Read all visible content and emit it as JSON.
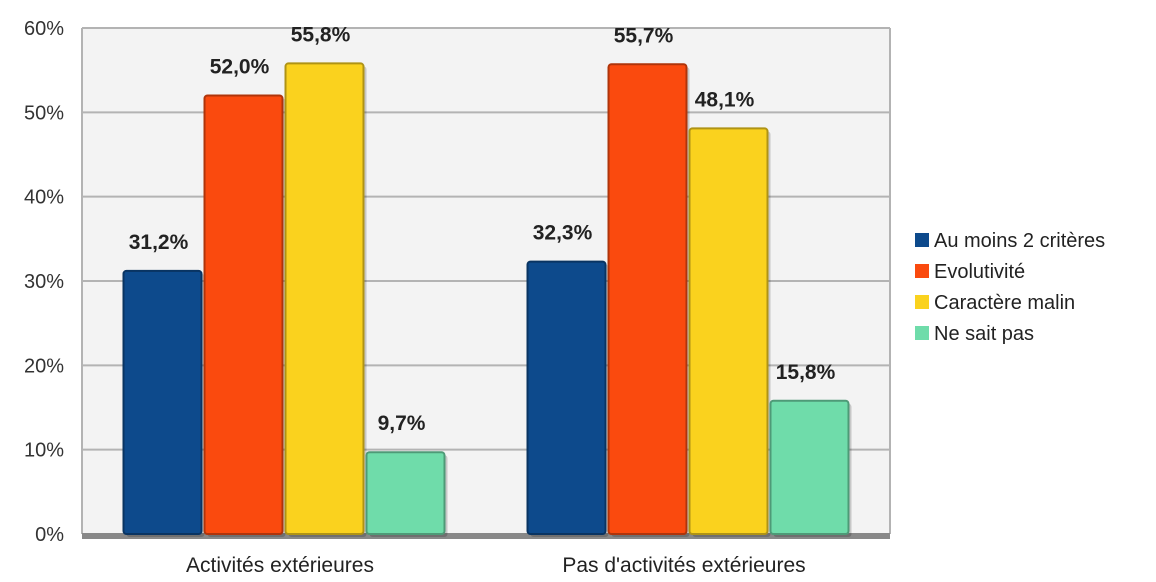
{
  "chart_data": {
    "type": "bar",
    "categories": [
      "Activités extérieures",
      "Pas d'activités extérieures"
    ],
    "series": [
      {
        "name": "Au moins 2 critères",
        "values": [
          31.2,
          32.3
        ],
        "labels": [
          "31,2%",
          "32,3%"
        ],
        "color": "#0d4a8c"
      },
      {
        "name": "Evolutivité",
        "values": [
          52.0,
          55.7
        ],
        "labels": [
          "52,0%",
          "55,7%"
        ],
        "color": "#fa4a0e"
      },
      {
        "name": "Caractère malin",
        "values": [
          55.8,
          48.1
        ],
        "labels": [
          "55,8%",
          "48,1%"
        ],
        "color": "#fad21e"
      },
      {
        "name": "Ne sait pas",
        "values": [
          9.7,
          15.8
        ],
        "labels": [
          "9,7%",
          "15,8%"
        ],
        "color": "#6fdcaa"
      }
    ],
    "ylim": [
      0,
      60
    ],
    "yticks": [
      0,
      10,
      20,
      30,
      40,
      50,
      60
    ],
    "ytick_labels": [
      "0%",
      "10%",
      "20%",
      "30%",
      "40%",
      "50%",
      "60%"
    ],
    "grid": true,
    "legend_position": "right"
  },
  "colors": {
    "plot_background": "#f3f3f3",
    "gridline": "#b3b3b3",
    "axis": "#888888"
  }
}
